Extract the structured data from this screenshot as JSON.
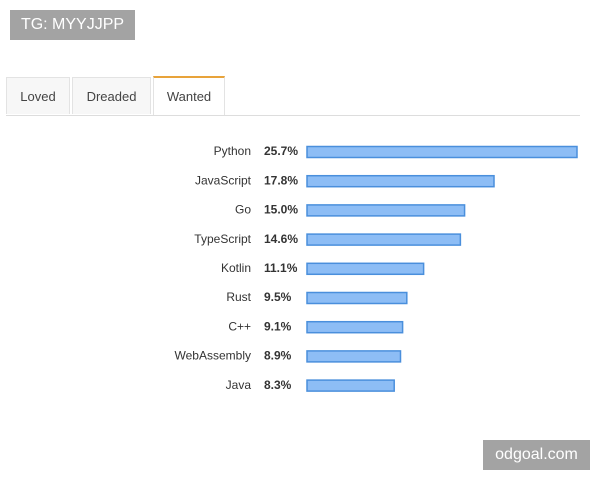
{
  "watermark": "TG: MYYJJPP",
  "footer_watermark": "odgoal.com",
  "tabs": [
    "Loved",
    "Dreaded",
    "Wanted"
  ],
  "chart_data": {
    "type": "bar",
    "orientation": "horizontal",
    "categories": [
      "Python",
      "JavaScript",
      "Go",
      "TypeScript",
      "Kotlin",
      "Rust",
      "C++",
      "WebAssembly",
      "Java"
    ],
    "values": [
      25.7,
      17.8,
      15.0,
      14.6,
      11.1,
      9.5,
      9.1,
      8.9,
      8.3
    ],
    "value_labels": [
      "25.7%",
      "17.8%",
      "15.0%",
      "14.6%",
      "11.1%",
      "9.5%",
      "9.1%",
      "8.9%",
      "8.3%"
    ],
    "color": "#8dbdf5",
    "edge_color": "#4a8fdc"
  }
}
